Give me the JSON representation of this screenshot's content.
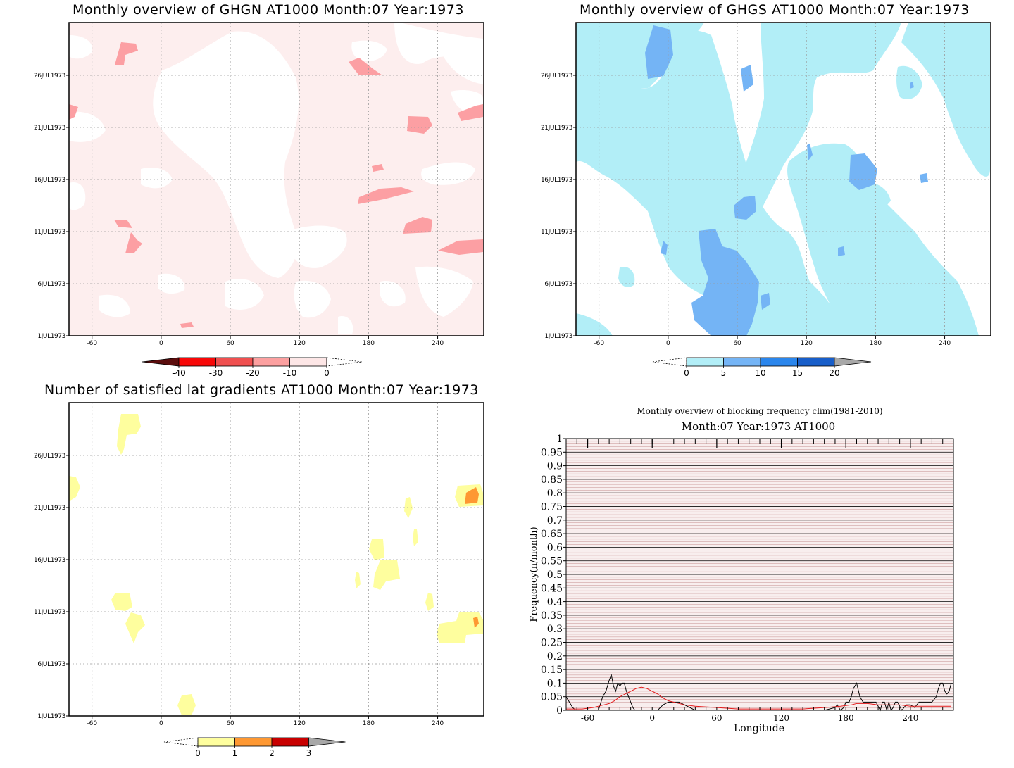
{
  "panels": [
    {
      "id": "ghgn",
      "title": "Monthly overview of GHGN AT1000 Month:07 Year:1973",
      "colorbar": {
        "labels": [
          "-40",
          "-30",
          "-20",
          "-10",
          "0"
        ],
        "colors": [
          "#5b0d0d",
          "#f70808",
          "#f05050",
          "#fca0a0",
          "#fde6e6"
        ],
        "bg": "#fdeeee",
        "level1": "#fc9fa3"
      }
    },
    {
      "id": "ghgs",
      "title": "Monthly overview of GHGS AT1000 Month:07 Year:1973",
      "colorbar": {
        "labels": [
          "0",
          "5",
          "10",
          "15",
          "20"
        ],
        "colors": [
          "#b2eef7",
          "#74b4f5",
          "#2b86ec",
          "#185ec9",
          "#a8a8a8"
        ],
        "level1": "#b2eef7",
        "level2": "#74b4f5"
      }
    },
    {
      "id": "nsat",
      "title": "Number of satisfied lat gradients AT1000 Month:07 Year:1973",
      "colorbar": {
        "labels": [
          "0",
          "1",
          "2",
          "3"
        ],
        "colors": [
          "#fefe9e",
          "#fe9832",
          "#c80000",
          "#a8a8a8"
        ],
        "level1": "#fefe9e",
        "level2": "#fe9832"
      }
    }
  ],
  "shared_axes": {
    "x_ticks": [
      "-60",
      "0",
      "60",
      "120",
      "180",
      "240"
    ],
    "y_ticks": [
      "1JUL1973",
      "6JUL1973",
      "11JUL1973",
      "16JUL1973",
      "21JUL1973",
      "26JUL1973"
    ]
  },
  "chart_data": [
    {
      "type": "heatmap",
      "title": "Monthly overview of GHGN AT1000 Month:07 Year:1973",
      "x_ticks": [
        -60,
        0,
        60,
        120,
        180,
        240
      ],
      "y_ticks": [
        "1JUL1973",
        "6JUL1973",
        "11JUL1973",
        "16JUL1973",
        "21JUL1973",
        "26JUL1973"
      ],
      "xlim": [
        -80,
        280
      ],
      "levels": [
        -40,
        -30,
        -20,
        -10,
        0
      ]
    },
    {
      "type": "heatmap",
      "title": "Monthly overview of GHGS AT1000 Month:07 Year:1973",
      "x_ticks": [
        -60,
        0,
        60,
        120,
        180,
        240
      ],
      "y_ticks": [
        "1JUL1973",
        "6JUL1973",
        "11JUL1973",
        "16JUL1973",
        "21JUL1973",
        "26JUL1973"
      ],
      "xlim": [
        -80,
        280
      ],
      "levels": [
        0,
        5,
        10,
        15,
        20
      ]
    },
    {
      "type": "heatmap",
      "title": "Number of satisfied lat gradients AT1000 Month:07 Year:1973",
      "x_ticks": [
        -60,
        0,
        60,
        120,
        180,
        240
      ],
      "y_ticks": [
        "1JUL1973",
        "6JUL1973",
        "11JUL1973",
        "16JUL1973",
        "21JUL1973",
        "26JUL1973"
      ],
      "xlim": [
        -80,
        280
      ],
      "levels": [
        0,
        1,
        2,
        3
      ]
    },
    {
      "type": "line",
      "title": "Monthly overview of blocking frequency clim(1981-2010)",
      "subtitle": "Month:07 Year:1973  AT1000",
      "xlabel": "Longitude",
      "ylabel": "Frequency(n/month)",
      "x_ticks": [
        -60,
        0,
        60,
        120,
        180,
        240
      ],
      "y_ticks": [
        "0",
        "0.05",
        "0.1",
        "0.15",
        "0.2",
        "0.25",
        "0.3",
        "0.35",
        "0.4",
        "0.45",
        "0.5",
        "0.55",
        "0.6",
        "0.65",
        "0.7",
        "0.75",
        "0.8",
        "0.85",
        "0.9",
        "0.95",
        "1"
      ],
      "xlim": [
        -80,
        280
      ],
      "ylim": [
        0,
        1
      ],
      "series": [
        {
          "color": "#000000",
          "x": [
            -80,
            -77,
            -74,
            -71,
            -68,
            -65,
            -50,
            -46,
            -43,
            -40,
            -38,
            -36,
            -34,
            -32,
            -30,
            -28,
            -26,
            -24,
            -22,
            -20,
            -18,
            -16,
            -14,
            -12,
            -10,
            -6,
            0,
            5,
            10,
            15,
            20,
            25,
            30,
            40,
            60,
            80,
            100,
            120,
            140,
            160,
            170,
            172,
            175,
            178,
            180,
            183,
            185,
            187,
            190,
            193,
            196,
            200,
            204,
            208,
            212,
            214,
            216,
            218,
            220,
            222,
            224,
            226,
            228,
            232,
            236,
            240,
            244,
            248,
            252,
            256,
            260,
            262,
            264,
            266,
            268,
            270,
            272,
            274,
            276,
            278
          ],
          "y": [
            0.05,
            0.03,
            0.01,
            0,
            0,
            0,
            0,
            0.05,
            0.07,
            0.11,
            0.13,
            0.09,
            0.07,
            0.1,
            0.09,
            0.1,
            0.1,
            0.07,
            0.05,
            0.03,
            0.01,
            0,
            0,
            0,
            0,
            0,
            0,
            0,
            0.02,
            0.03,
            0.03,
            0.03,
            0.02,
            0,
            0,
            0,
            0,
            0,
            0,
            0,
            0.01,
            0.02,
            0,
            0.01,
            0.03,
            0.03,
            0.05,
            0.08,
            0.1,
            0.05,
            0.03,
            0.03,
            0.03,
            0.03,
            0,
            0.03,
            0.03,
            0,
            0.03,
            0,
            0.01,
            0.03,
            0.03,
            0,
            0.02,
            0.02,
            0.01,
            0.03,
            0.03,
            0.03,
            0.03,
            0.04,
            0.05,
            0.08,
            0.1,
            0.1,
            0.07,
            0.06,
            0.07,
            0.1
          ]
        },
        {
          "color": "#e41a1c",
          "x": [
            -80,
            -65,
            -55,
            -50,
            -45,
            -40,
            -35,
            -30,
            -25,
            -20,
            -15,
            -10,
            -5,
            0,
            5,
            10,
            15,
            20,
            30,
            40,
            60,
            80,
            100,
            120,
            140,
            160,
            175,
            185,
            190,
            200,
            210,
            220,
            230,
            240,
            250,
            260,
            270,
            278
          ],
          "y": [
            0.005,
            0.005,
            0.01,
            0.015,
            0.02,
            0.025,
            0.035,
            0.05,
            0.06,
            0.07,
            0.08,
            0.085,
            0.08,
            0.07,
            0.06,
            0.045,
            0.035,
            0.03,
            0.02,
            0.015,
            0.01,
            0.005,
            0.005,
            0.005,
            0.005,
            0.01,
            0.015,
            0.02,
            0.025,
            0.025,
            0.02,
            0.02,
            0.02,
            0.015,
            0.015,
            0.015,
            0.015,
            0.015
          ]
        }
      ]
    }
  ]
}
